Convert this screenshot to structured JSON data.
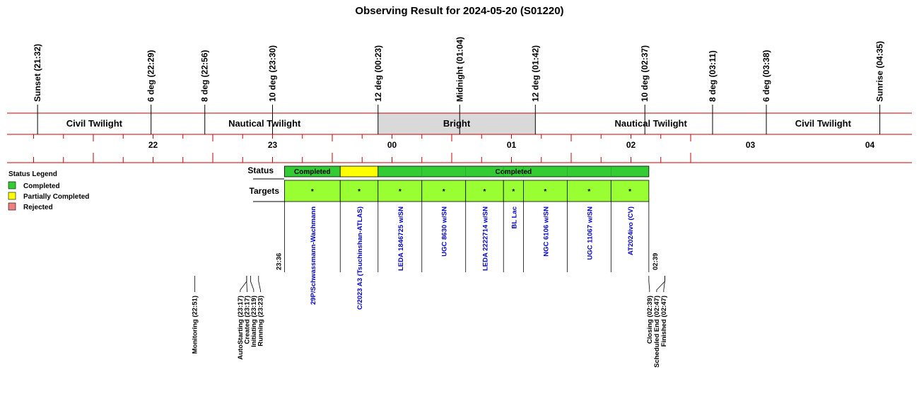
{
  "chart_data": {
    "type": "timeline",
    "title": "Observing Result for 2024-05-20 (S01220)",
    "twilight_events": [
      {
        "label": "Sunset (21:32)",
        "time": "21:32"
      },
      {
        "label": "6 deg (22:29)",
        "time": "22:29"
      },
      {
        "label": "8 deg (22:56)",
        "time": "22:56"
      },
      {
        "label": "10 deg (23:30)",
        "time": "23:30"
      },
      {
        "label": "12 deg (00:23)",
        "time": "00:23"
      },
      {
        "label": "Midnight (01:04)",
        "time": "01:04"
      },
      {
        "label": "12 deg (01:42)",
        "time": "01:42"
      },
      {
        "label": "10 deg (02:37)",
        "time": "02:37"
      },
      {
        "label": "8 deg (03:11)",
        "time": "03:11"
      },
      {
        "label": "6 deg (03:38)",
        "time": "03:38"
      },
      {
        "label": "Sunrise (04:35)",
        "time": "04:35"
      }
    ],
    "bands": [
      {
        "label": "Civil Twilight",
        "start": "21:32",
        "end": "22:29",
        "shaded": false
      },
      {
        "label": "Nautical Twilight",
        "start": "22:29",
        "end": "00:23",
        "shaded": false
      },
      {
        "label": "Bright",
        "start": "00:23",
        "end": "01:42",
        "shaded": true
      },
      {
        "label": "Nautical Twilight",
        "start": "01:42",
        "end": "03:38",
        "shaded": false
      },
      {
        "label": "Civil Twilight",
        "start": "03:38",
        "end": "04:35",
        "shaded": false
      }
    ],
    "hour_labels": [
      "22",
      "23",
      "00",
      "01",
      "02",
      "03",
      "04"
    ],
    "status_label": "Status",
    "targets_label": "Targets",
    "status_segments": [
      {
        "label": "Completed",
        "start": "23:36",
        "end": "00:04",
        "status": "completed"
      },
      {
        "label": "",
        "start": "00:04",
        "end": "00:23",
        "status": "partial"
      },
      {
        "label": "Completed",
        "start": "00:23",
        "end": "02:39",
        "status": "completed"
      }
    ],
    "targets": [
      {
        "name": "29P/Schwassmann-Wachmann",
        "start": "23:36",
        "end": "00:04",
        "mark": "*"
      },
      {
        "name": "C/2023 A3 (Tsuchinshan-ATLAS)",
        "start": "00:04",
        "end": "00:23",
        "mark": "*"
      },
      {
        "name": "LEDA 1846725 w/SN",
        "start": "00:23",
        "end": "00:45",
        "mark": "*"
      },
      {
        "name": "UGC 8630 w/SN",
        "start": "00:45",
        "end": "01:07",
        "mark": "*"
      },
      {
        "name": "LEDA 2222714 w/SN",
        "start": "01:07",
        "end": "01:26",
        "mark": "*"
      },
      {
        "name": "BL Lac",
        "start": "01:26",
        "end": "01:36",
        "mark": "*"
      },
      {
        "name": "NGC 6106 w/SN",
        "start": "01:36",
        "end": "01:58",
        "mark": "*"
      },
      {
        "name": "UGC 11067 w/SN",
        "start": "01:58",
        "end": "02:20",
        "mark": "*"
      },
      {
        "name": "AT2024ivo (CV)",
        "start": "02:20",
        "end": "02:39",
        "mark": "*"
      }
    ],
    "window_start_label": "23:36",
    "window_end_label": "02:39",
    "stages": [
      {
        "label": "Monitoring (22:51)",
        "time": "22:51"
      },
      {
        "label": "AutoStarting (23:17)",
        "time": "23:17"
      },
      {
        "label": "Created (23:17)",
        "time": "23:17"
      },
      {
        "label": "Initiating (23:19)",
        "time": "23:19"
      },
      {
        "label": "Running (23:23)",
        "time": "23:23"
      },
      {
        "label": "Closing (02:39)",
        "time": "02:39"
      },
      {
        "label": "Scheduled End (02:47)",
        "time": "02:47"
      },
      {
        "label": "Finished (02:47)",
        "time": "02:47"
      }
    ],
    "legend": {
      "title": "Status Legend",
      "items": [
        {
          "label": "Completed",
          "color": "#33cc33"
        },
        {
          "label": "Partially Completed",
          "color": "#ffff00"
        },
        {
          "label": "Rejected",
          "color": "#f08080"
        }
      ]
    },
    "colors": {
      "completed": "#33cc33",
      "partial": "#ffff00",
      "target_fill": "#99ff33",
      "bright_band": "#d9d9d9",
      "axis_red": "#cc0000",
      "target_text": "#0000cc"
    }
  }
}
